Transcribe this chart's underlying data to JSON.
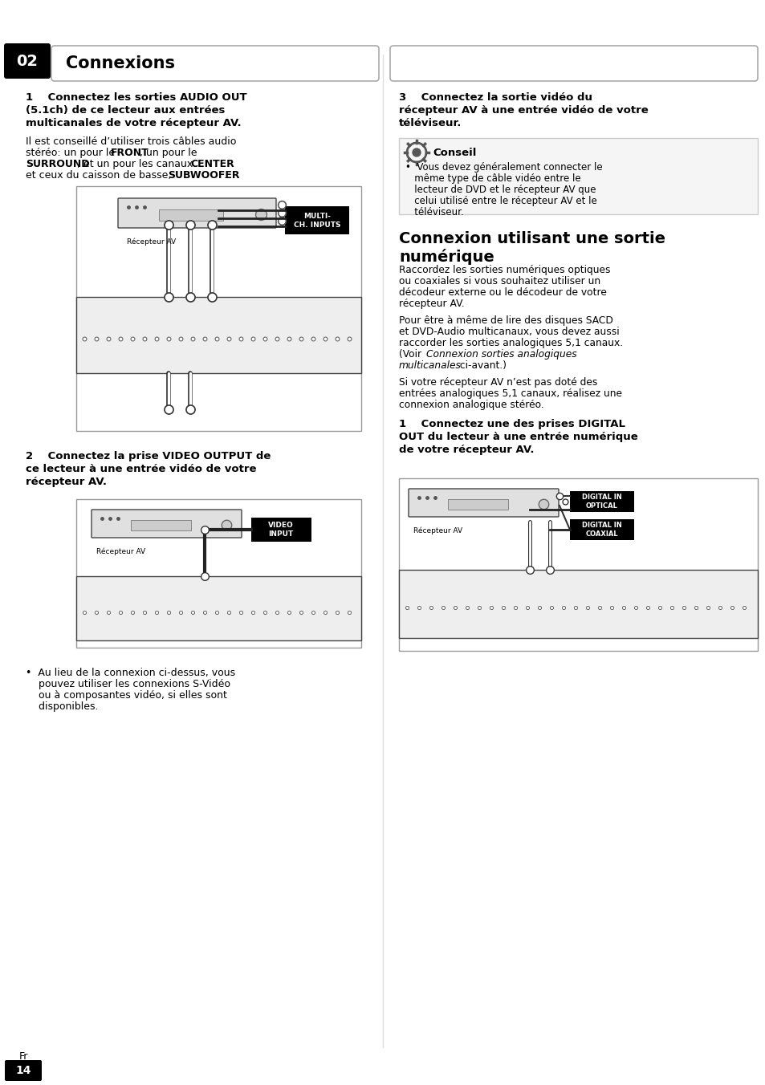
{
  "bg_color": "#ffffff",
  "page_number": "14",
  "page_lang": "Fr",
  "chapter_num": "02",
  "chapter_title": "Connexions"
}
